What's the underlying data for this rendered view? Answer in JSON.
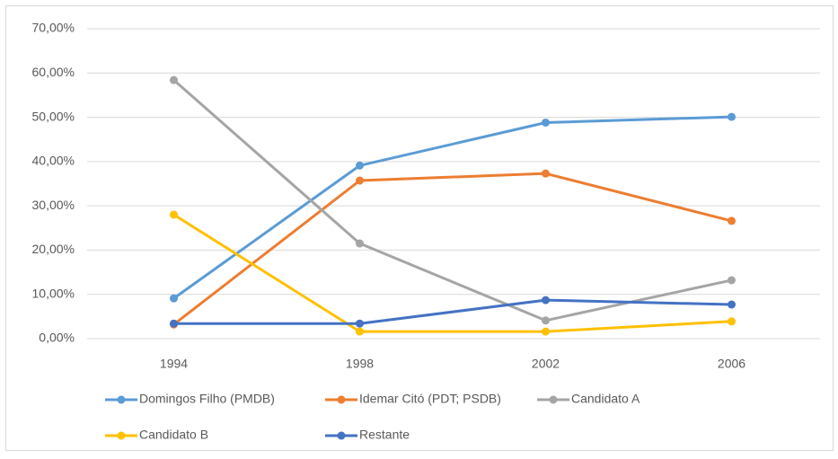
{
  "chart_data": {
    "type": "line",
    "categories": [
      "1994",
      "1998",
      "2002",
      "2006"
    ],
    "series": [
      {
        "name": "Domingos Filho (PMDB)",
        "color": "#5b9bd5",
        "values": [
          9.1,
          39.1,
          48.8,
          50.1
        ]
      },
      {
        "name": "Idemar Citó (PDT; PSDB)",
        "color": "#ed7d31",
        "values": [
          3.2,
          35.7,
          37.3,
          26.6
        ]
      },
      {
        "name": "Candidato A",
        "color": "#a5a5a5",
        "values": [
          58.4,
          21.5,
          4.1,
          13.2
        ]
      },
      {
        "name": "Candidato B",
        "color": "#ffc000",
        "values": [
          28.0,
          1.6,
          1.6,
          3.9
        ]
      },
      {
        "name": "Restante",
        "color": "#4472c4",
        "values": [
          3.4,
          3.4,
          8.7,
          7.7
        ]
      }
    ],
    "ylim": [
      0,
      70
    ],
    "yticks": [
      {
        "value": 0,
        "label": "0,00%"
      },
      {
        "value": 10,
        "label": "10,00%"
      },
      {
        "value": 20,
        "label": "20,00%"
      },
      {
        "value": 30,
        "label": "30,00%"
      },
      {
        "value": 40,
        "label": "40,00%"
      },
      {
        "value": 50,
        "label": "50,00%"
      },
      {
        "value": 60,
        "label": "60,00%"
      },
      {
        "value": 70,
        "label": "70,00%"
      }
    ],
    "grid": true,
    "legend": "bottom"
  }
}
